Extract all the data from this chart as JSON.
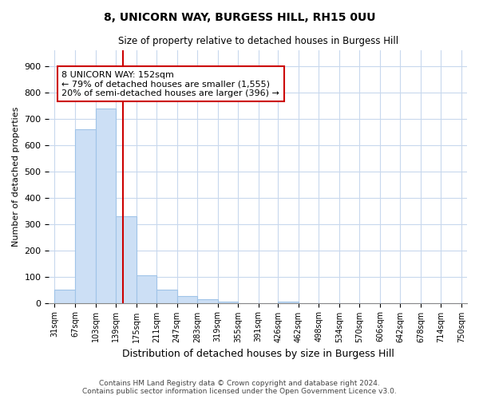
{
  "title1": "8, UNICORN WAY, BURGESS HILL, RH15 0UU",
  "title2": "Size of property relative to detached houses in Burgess Hill",
  "xlabel": "Distribution of detached houses by size in Burgess Hill",
  "ylabel": "Number of detached properties",
  "bin_edges": [
    31,
    67,
    103,
    139,
    175,
    211,
    247,
    283,
    319,
    355,
    391,
    426,
    462,
    498,
    534,
    570,
    606,
    642,
    678,
    714,
    750
  ],
  "bar_heights": [
    50,
    660,
    740,
    330,
    105,
    50,
    25,
    15,
    5,
    0,
    0,
    5,
    0,
    0,
    0,
    0,
    0,
    0,
    0,
    0
  ],
  "bar_color": "#ccdff5",
  "bar_edge_color": "#a0c4e8",
  "vline_x": 152,
  "vline_color": "#cc0000",
  "annotation_text": "8 UNICORN WAY: 152sqm\n← 79% of detached houses are smaller (1,555)\n20% of semi-detached houses are larger (396) →",
  "annotation_box_color": "white",
  "annotation_box_edge": "#cc0000",
  "ylim": [
    0,
    960
  ],
  "yticks": [
    0,
    100,
    200,
    300,
    400,
    500,
    600,
    700,
    800,
    900
  ],
  "footer1": "Contains HM Land Registry data © Crown copyright and database right 2024.",
  "footer2": "Contains public sector information licensed under the Open Government Licence v3.0.",
  "bg_color": "#ffffff",
  "plot_bg_color": "#ffffff",
  "grid_color": "#c8d8ed"
}
